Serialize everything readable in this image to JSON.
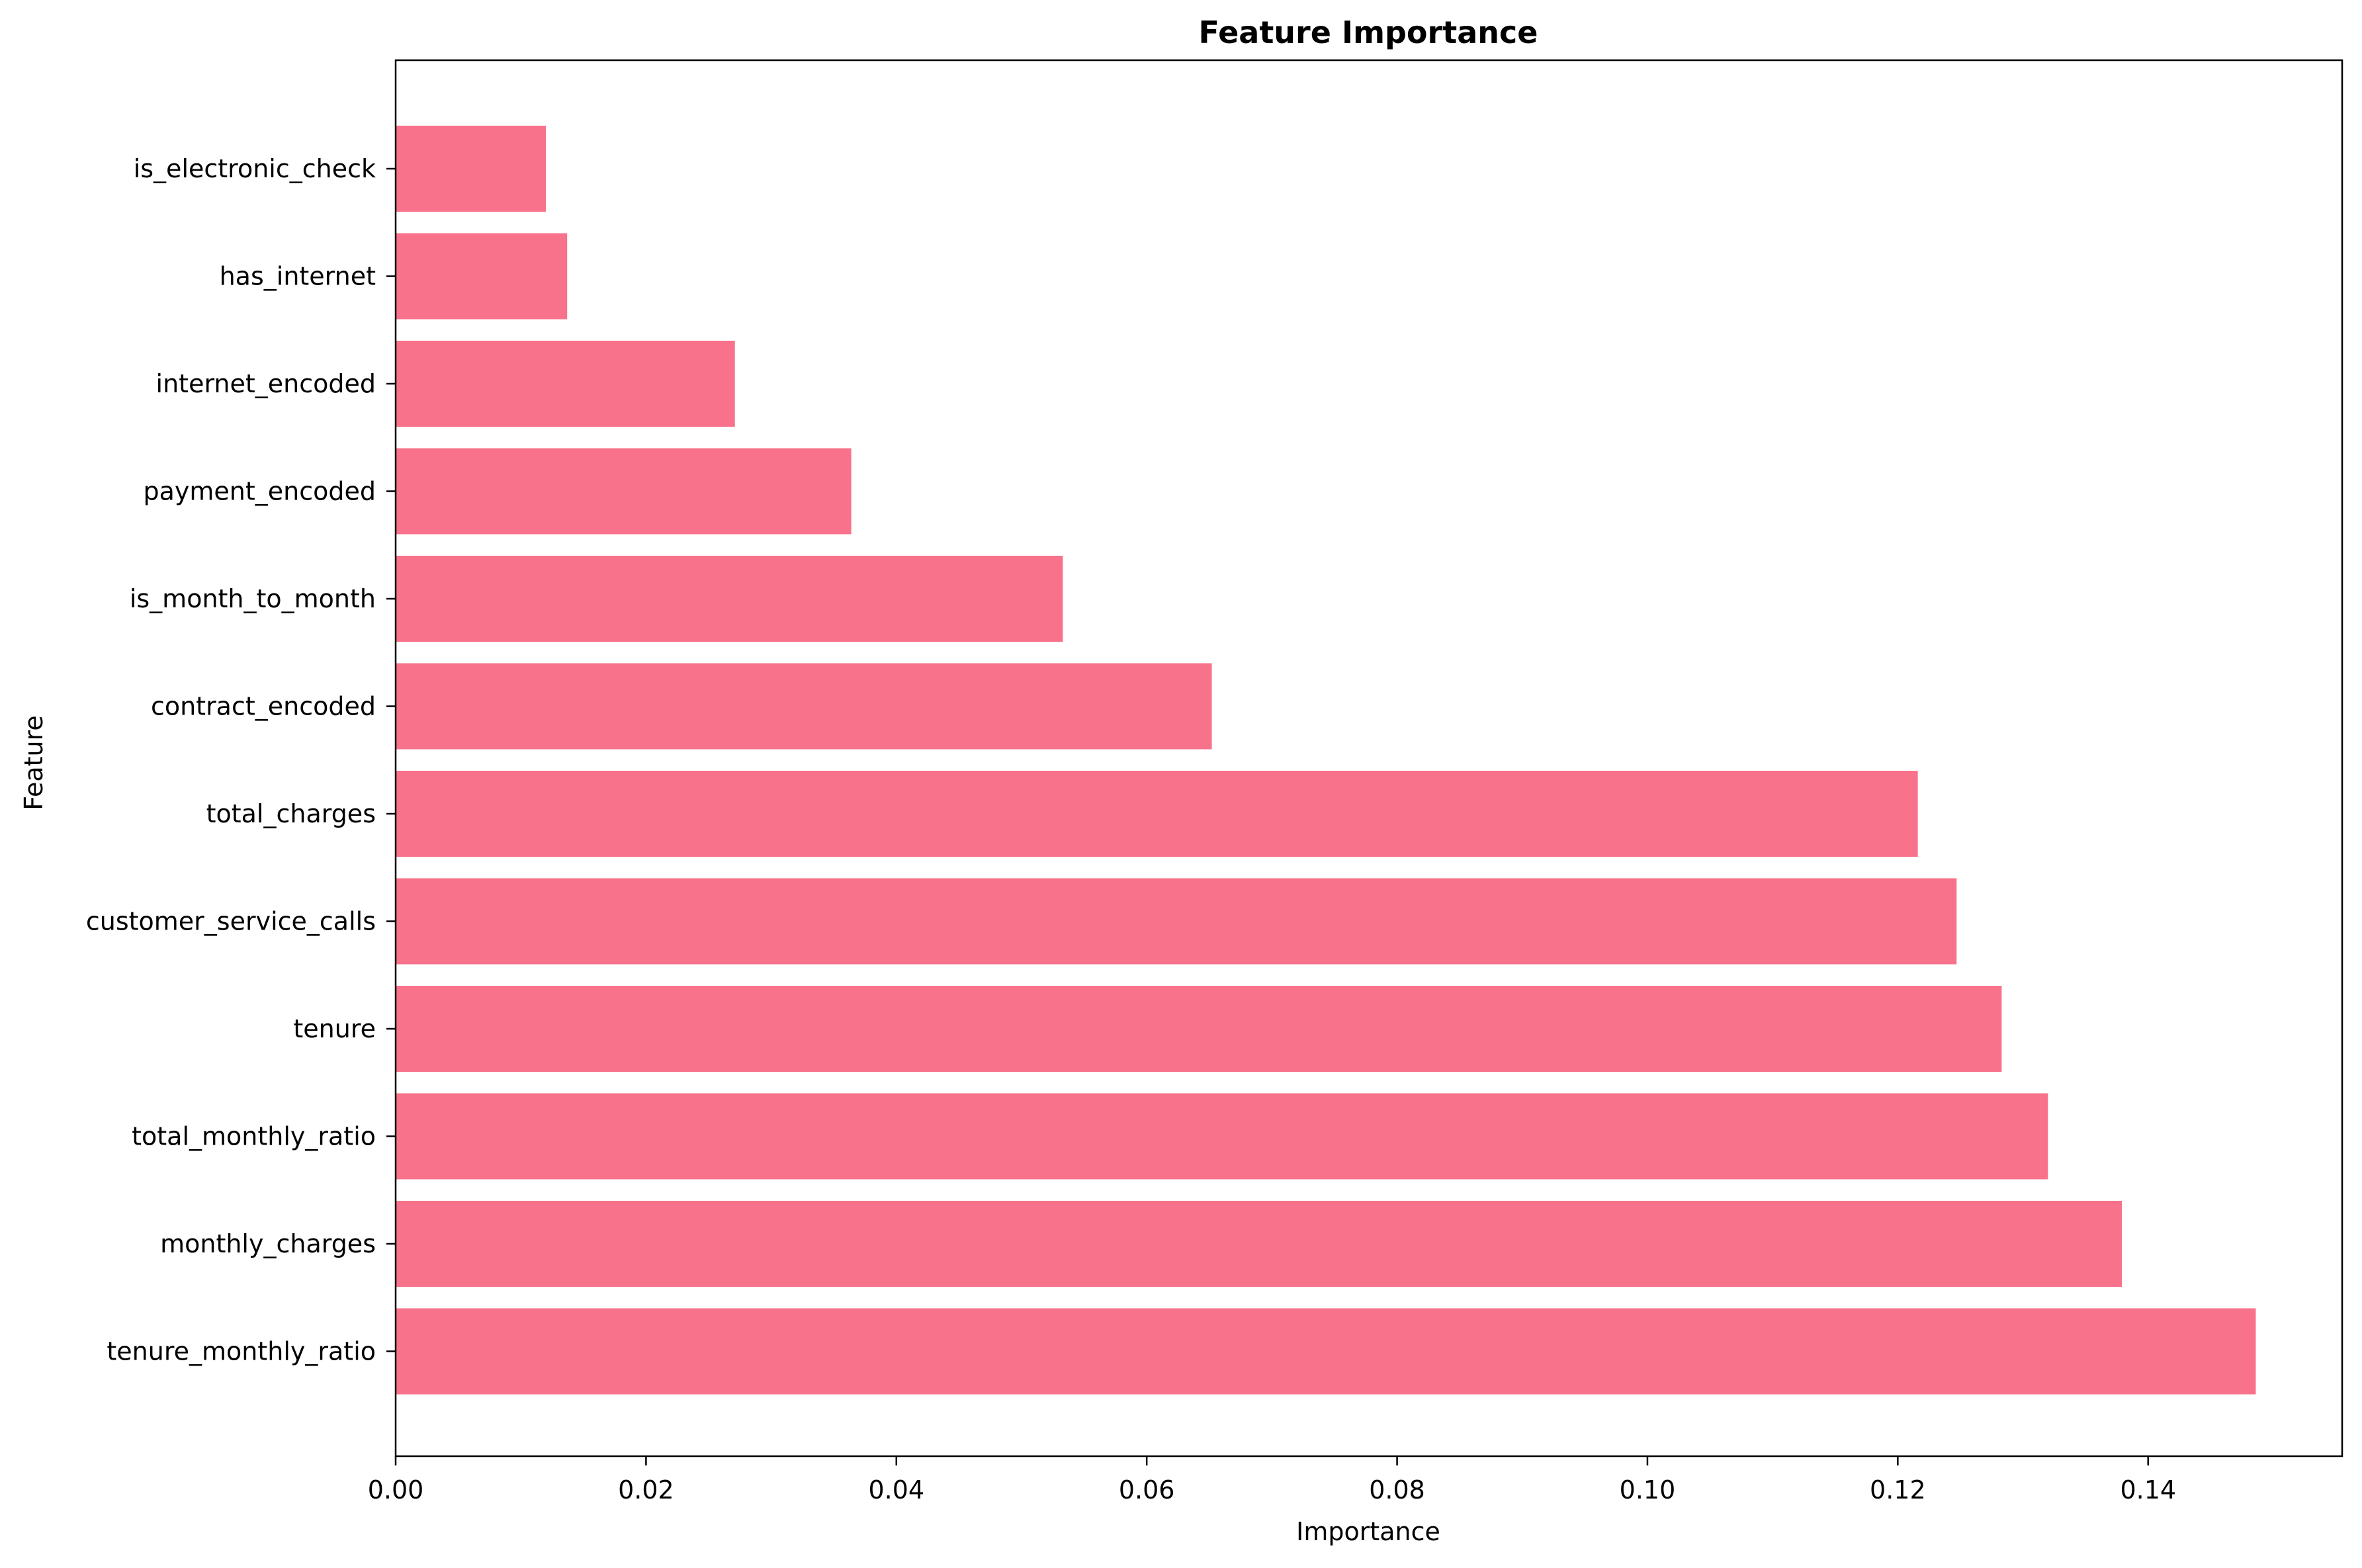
{
  "chart_data": {
    "type": "bar",
    "orientation": "horizontal",
    "title": "Feature Importance",
    "xlabel": "Importance",
    "ylabel": "Feature",
    "xlim": [
      0,
      0.1555
    ],
    "x_ticks": [
      0.0,
      0.02,
      0.04,
      0.06,
      0.08,
      0.1,
      0.12,
      0.14
    ],
    "x_tick_labels": [
      "0.00",
      "0.02",
      "0.04",
      "0.06",
      "0.08",
      "0.10",
      "0.12",
      "0.14"
    ],
    "grid": false,
    "legend": "none",
    "bar_color": "#f7728a",
    "categories": [
      "is_electronic_check",
      "has_internet",
      "internet_encoded",
      "payment_encoded",
      "is_month_to_month",
      "contract_encoded",
      "total_charges",
      "customer_service_calls",
      "tenure",
      "total_monthly_ratio",
      "monthly_charges",
      "tenure_monthly_ratio"
    ],
    "values": [
      0.012,
      0.0137,
      0.0271,
      0.0364,
      0.0533,
      0.0652,
      0.1216,
      0.1247,
      0.1283,
      0.132,
      0.1379,
      0.1486
    ]
  }
}
